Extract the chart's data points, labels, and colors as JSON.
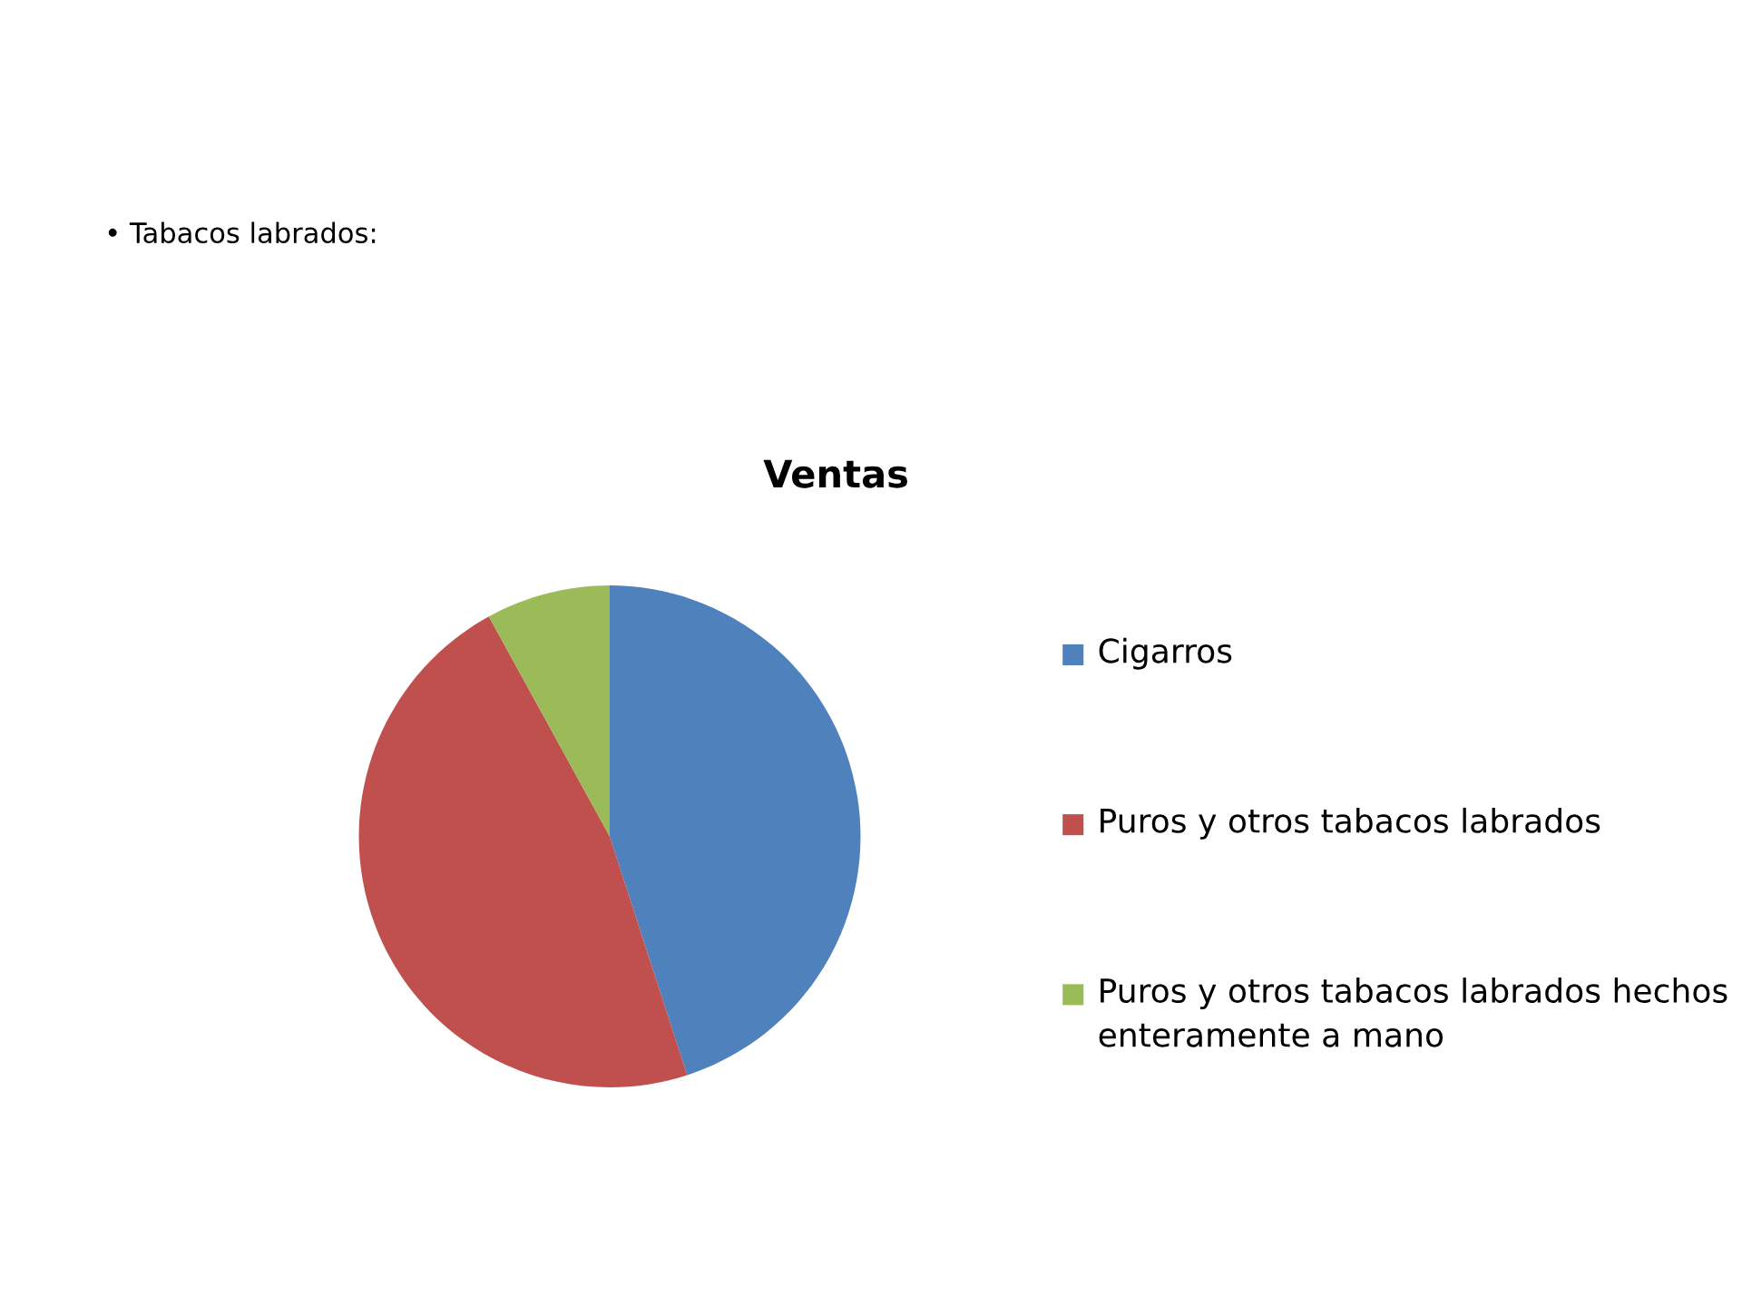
{
  "chart_data": {
    "type": "pie",
    "title": "Ventas",
    "categories": [
      "Cigarros",
      "Puros y otros tabacos labrados",
      "Puros y otros tabacos labrados hechos enteramente a mano"
    ],
    "values": [
      45,
      47,
      8
    ],
    "colors": [
      "#4f81bd",
      "#c0504d",
      "#9bbb59"
    ],
    "legend": "right",
    "annotations": [
      "• Tabacos labrados:"
    ]
  }
}
